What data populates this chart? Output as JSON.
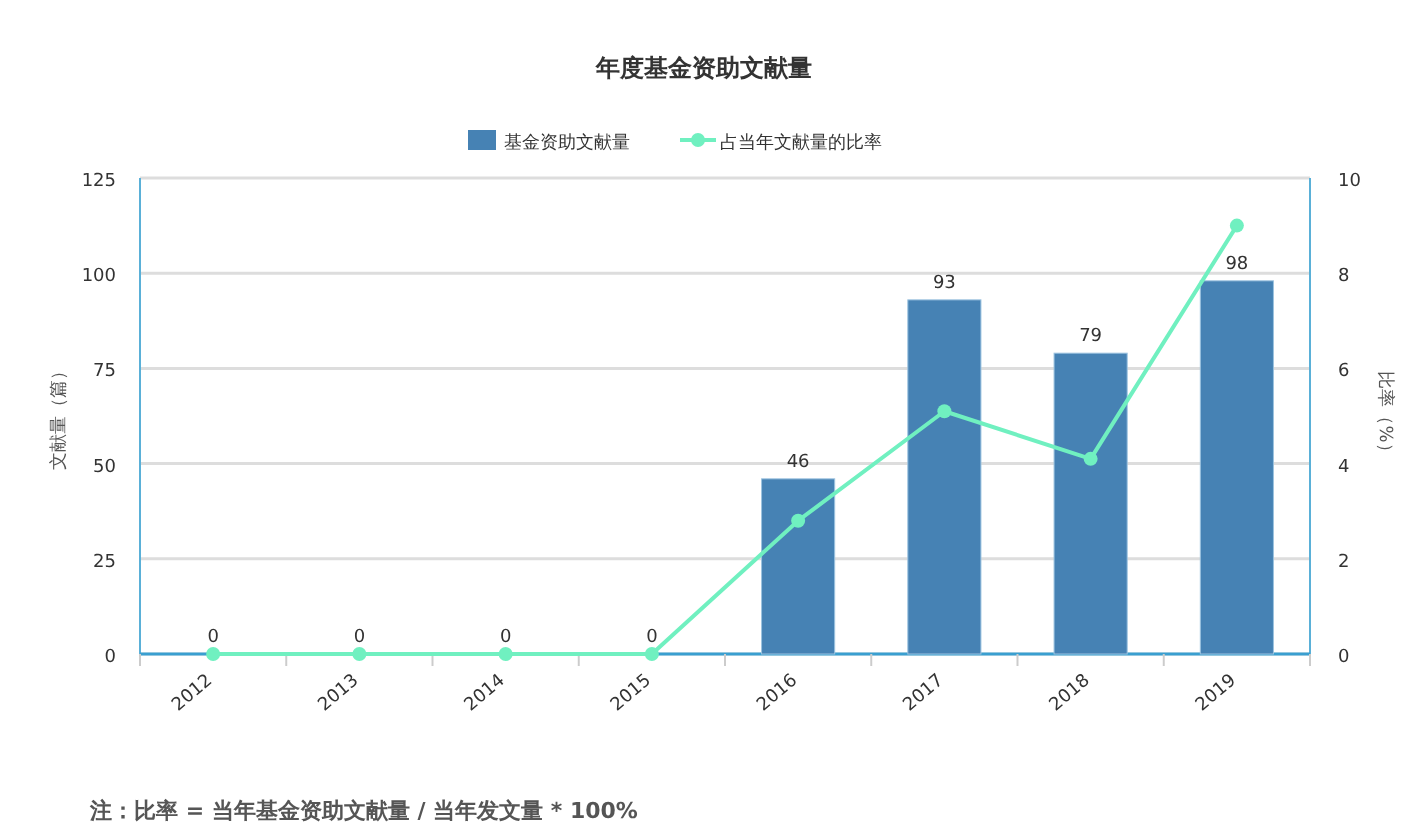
{
  "chart_data": {
    "type": "bar",
    "title": "年度基金资助文献量",
    "categories": [
      "2012",
      "2013",
      "2014",
      "2015",
      "2016",
      "2017",
      "2018",
      "2019"
    ],
    "series": [
      {
        "name": "基金资助文献量",
        "color": "#4682b4",
        "values": [
          0,
          0,
          0,
          0,
          46,
          93,
          79,
          98
        ],
        "value_labels": [
          "0",
          "0",
          "0",
          "0",
          "46",
          "93",
          "79",
          "98"
        ]
      },
      {
        "name": "占当年文献量的比率",
        "type": "line",
        "axis": "y2",
        "color": "#70f0c0",
        "marker": "circle",
        "values": [
          0,
          0,
          0,
          0,
          2.8,
          5.1,
          4.1,
          9.0
        ]
      }
    ],
    "ylabel": "文献量（篇）",
    "y2label": "比率（%）",
    "ylim": [
      0,
      125
    ],
    "yticks": [
      0,
      25,
      50,
      75,
      100,
      125
    ],
    "y2lim": [
      0,
      10
    ],
    "y2ticks": [
      0,
      2,
      4,
      6,
      8,
      10
    ],
    "grid": "y",
    "legend": "top",
    "annotations": [
      "注：比率 = 当年基金资助文献量 / 当年发文量 * 100%"
    ]
  }
}
